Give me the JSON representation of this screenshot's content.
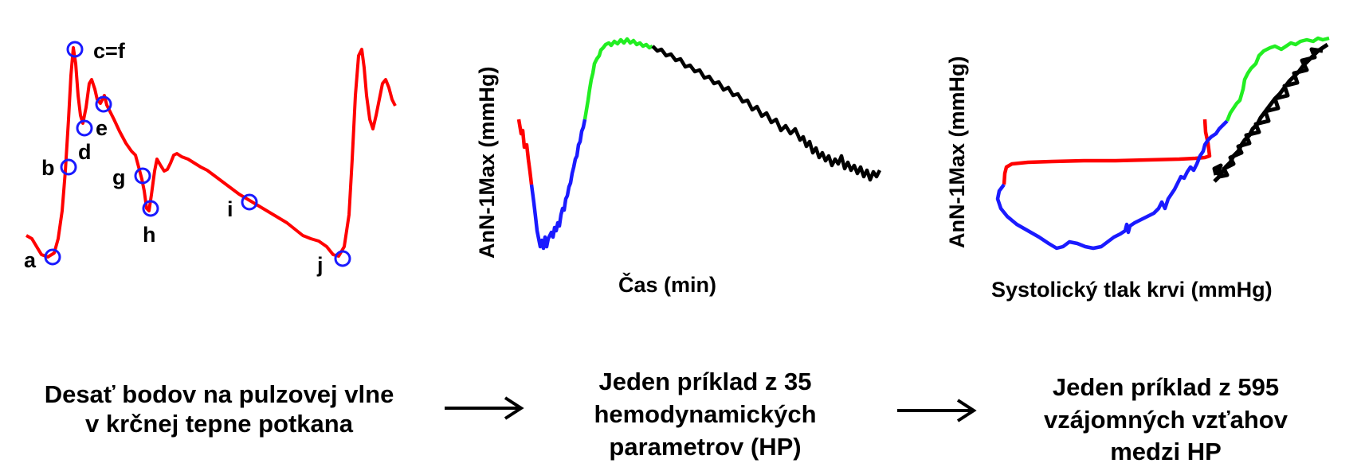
{
  "panel1": {
    "points": [
      "a",
      "b",
      "c=f",
      "d",
      "e",
      "g",
      "h",
      "i",
      "j"
    ],
    "colors": {
      "wave": "#ff0000",
      "marker": "#1a1aff"
    }
  },
  "panel2": {
    "ylabel": "AnN-1Max (mmHg)",
    "xlabel": "Čas (min)",
    "segment_colors": [
      "#ff0000",
      "#1a1aff",
      "#22ee22",
      "#000000"
    ]
  },
  "panel3": {
    "ylabel": "AnN-1Max (mmHg)",
    "xlabel": "Systolický tlak krvi (mmHg)",
    "segment_colors": [
      "#ff0000",
      "#1a1aff",
      "#22ee22",
      "#000000"
    ]
  },
  "captions": {
    "c1": [
      "Desať bodov na pulzovej vlne",
      "v krčnej tepne potkana"
    ],
    "c2": [
      "Jeden príklad z 35",
      "hemodynamických",
      "parametrov (HP)"
    ],
    "c3": [
      "Jeden príklad z 595",
      "vzájomných vzťahov",
      "medzi HP"
    ]
  },
  "arrows": [
    "arrow-1",
    "arrow-2"
  ]
}
